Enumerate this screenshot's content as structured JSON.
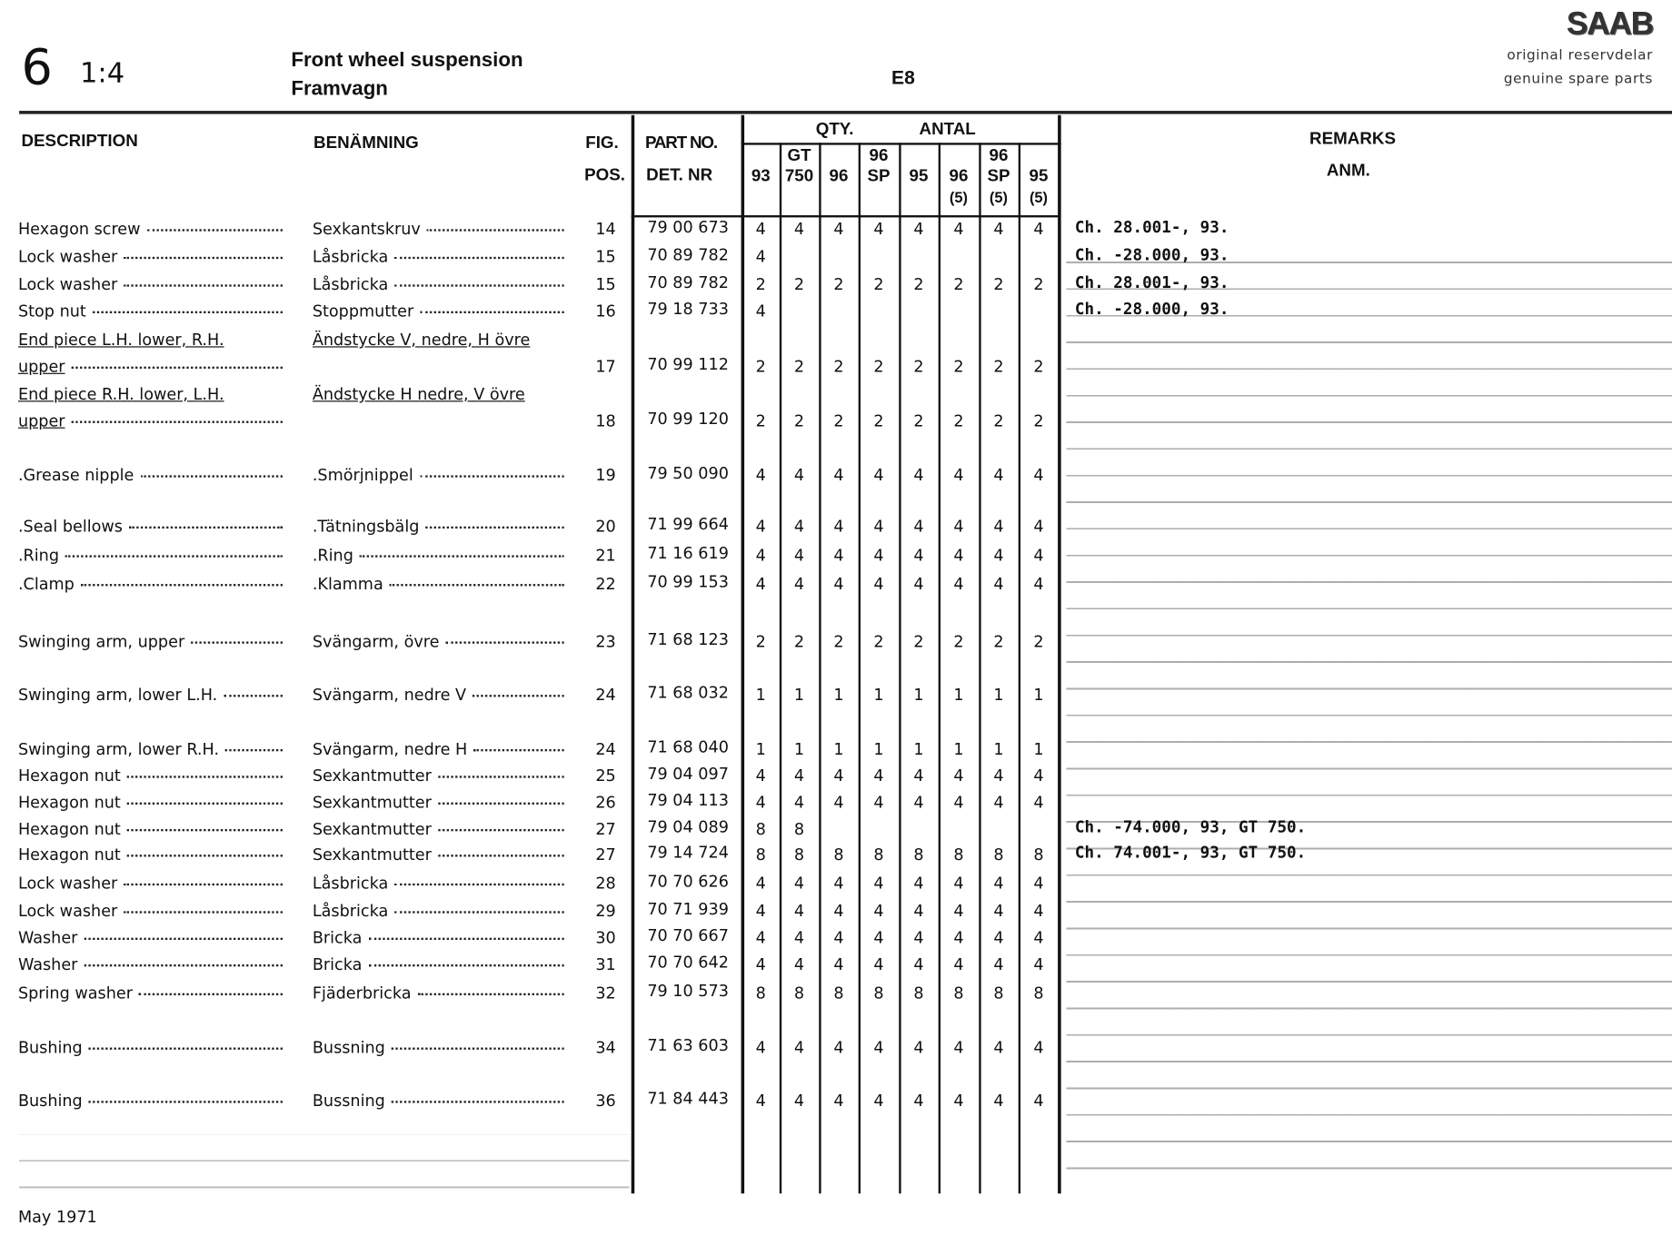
{
  "header": {
    "section": "6",
    "scale": "1:4",
    "title_en": "Front wheel  suspension",
    "title_sv": "Framvagn",
    "code": "E8",
    "brand": "SAAB",
    "tagline_sv": "original reservdelar",
    "tagline_en": "genuine spare parts"
  },
  "columns": {
    "description": "DESCRIPTION",
    "benamning": "BENÄMNING",
    "fig": "FIG.",
    "pos": "POS.",
    "part_no": "PART NO.",
    "det_nr": "DET. NR",
    "qty": "QTY.",
    "antal": "ANTAL",
    "models": [
      {
        "l1": "",
        "l2": "93",
        "l3": ""
      },
      {
        "l1": "GT",
        "l2": "750",
        "l3": ""
      },
      {
        "l1": "",
        "l2": "96",
        "l3": ""
      },
      {
        "l1": "96",
        "l2": "SP",
        "l3": ""
      },
      {
        "l1": "",
        "l2": "95",
        "l3": ""
      },
      {
        "l1": "",
        "l2": "96",
        "l3": "(5)"
      },
      {
        "l1": "96",
        "l2": "SP",
        "l3": "(5)"
      },
      {
        "l1": "",
        "l2": "95",
        "l3": "(5)"
      }
    ],
    "remarks": "REMARKS",
    "anm": "ANM."
  },
  "rows": [
    {
      "desc": "Hexagon screw",
      "benam": "Sexkantskruv",
      "pos": "14",
      "part": "79 00 673",
      "qty": [
        "4",
        "4",
        "4",
        "4",
        "4",
        "4",
        "4",
        "4"
      ],
      "remark": "Ch. 28.001-, 93."
    },
    {
      "desc": "Lock washer",
      "benam": "Låsbricka",
      "pos": "15",
      "part": "70 89 782",
      "qty": [
        "4",
        "",
        "",
        "",
        "",
        "",
        "",
        ""
      ],
      "remark": "Ch. -28.000, 93."
    },
    {
      "desc": "Lock washer",
      "benam": "Låsbricka",
      "pos": "15",
      "part": "70 89 782",
      "qty": [
        "2",
        "2",
        "2",
        "2",
        "2",
        "2",
        "2",
        "2"
      ],
      "remark": "Ch. 28.001-, 93."
    },
    {
      "desc": "Stop nut",
      "benam": "Stoppmutter",
      "pos": "16",
      "part": "79 18 733",
      "qty": [
        "4",
        "",
        "",
        "",
        "",
        "",
        "",
        ""
      ],
      "remark": "Ch. -28.000, 93."
    },
    {
      "desc": "End piece L.H. lower, R.H.",
      "benam": "Ändstycke V, nedre, H övre",
      "pos": "",
      "part": "",
      "qty": [
        "",
        "",
        "",
        "",
        "",
        "",
        "",
        ""
      ],
      "remark": "",
      "underline": true
    },
    {
      "desc": "upper",
      "benam": "",
      "pos": "17",
      "part": "70 99 112",
      "qty": [
        "2",
        "2",
        "2",
        "2",
        "2",
        "2",
        "2",
        "2"
      ],
      "remark": "",
      "underline": true
    },
    {
      "desc": "End piece R.H. lower, L.H.",
      "benam": "Ändstycke H nedre, V övre",
      "pos": "",
      "part": "",
      "qty": [
        "",
        "",
        "",
        "",
        "",
        "",
        "",
        ""
      ],
      "remark": "",
      "underline": true
    },
    {
      "desc": "upper",
      "benam": "",
      "pos": "18",
      "part": "70 99 120",
      "qty": [
        "2",
        "2",
        "2",
        "2",
        "2",
        "2",
        "2",
        "2"
      ],
      "remark": "",
      "underline": true
    },
    {
      "desc": ".Grease nipple",
      "benam": ".Smörjnippel",
      "pos": "19",
      "part": "79 50 090",
      "qty": [
        "4",
        "4",
        "4",
        "4",
        "4",
        "4",
        "4",
        "4"
      ],
      "remark": ""
    },
    {
      "desc": ".Seal bellows",
      "benam": ".Tätningsbälg",
      "pos": "20",
      "part": "71 99 664",
      "qty": [
        "4",
        "4",
        "4",
        "4",
        "4",
        "4",
        "4",
        "4"
      ],
      "remark": ""
    },
    {
      "desc": ".Ring",
      "benam": ".Ring",
      "pos": "21",
      "part": "71 16 619",
      "qty": [
        "4",
        "4",
        "4",
        "4",
        "4",
        "4",
        "4",
        "4"
      ],
      "remark": ""
    },
    {
      "desc": ".Clamp",
      "benam": ".Klamma",
      "pos": "22",
      "part": "70 99 153",
      "qty": [
        "4",
        "4",
        "4",
        "4",
        "4",
        "4",
        "4",
        "4"
      ],
      "remark": ""
    },
    {
      "desc": "Swinging arm, upper",
      "benam": "Svängarm, övre",
      "pos": "23",
      "part": "71 68 123",
      "qty": [
        "2",
        "2",
        "2",
        "2",
        "2",
        "2",
        "2",
        "2"
      ],
      "remark": ""
    },
    {
      "desc": "Swinging arm, lower L.H.",
      "benam": "Svängarm, nedre V",
      "pos": "24",
      "part": "71 68 032",
      "qty": [
        "1",
        "1",
        "1",
        "1",
        "1",
        "1",
        "1",
        "1"
      ],
      "remark": ""
    },
    {
      "desc": "Swinging arm, lower R.H.",
      "benam": "Svängarm, nedre H",
      "pos": "24",
      "part": "71 68 040",
      "qty": [
        "1",
        "1",
        "1",
        "1",
        "1",
        "1",
        "1",
        "1"
      ],
      "remark": ""
    },
    {
      "desc": "Hexagon nut",
      "benam": "Sexkantmutter",
      "pos": "25",
      "part": "79 04 097",
      "qty": [
        "4",
        "4",
        "4",
        "4",
        "4",
        "4",
        "4",
        "4"
      ],
      "remark": ""
    },
    {
      "desc": "Hexagon nut",
      "benam": "Sexkantmutter",
      "pos": "26",
      "part": "79 04 113",
      "qty": [
        "4",
        "4",
        "4",
        "4",
        "4",
        "4",
        "4",
        "4"
      ],
      "remark": ""
    },
    {
      "desc": "Hexagon nut",
      "benam": "Sexkantmutter",
      "pos": "27",
      "part": "79 04 089",
      "qty": [
        "8",
        "8",
        "",
        "",
        "",
        "",
        "",
        ""
      ],
      "remark": "Ch. -74.000, 93, GT 750."
    },
    {
      "desc": "Hexagon nut",
      "benam": "Sexkantmutter",
      "pos": "27",
      "part": "79 14 724",
      "qty": [
        "8",
        "8",
        "8",
        "8",
        "8",
        "8",
        "8",
        "8"
      ],
      "remark": "Ch. 74.001-, 93, GT 750."
    },
    {
      "desc": "Lock washer",
      "benam": "Låsbricka",
      "pos": "28",
      "part": "70 70 626",
      "qty": [
        "4",
        "4",
        "4",
        "4",
        "4",
        "4",
        "4",
        "4"
      ],
      "remark": ""
    },
    {
      "desc": "Lock washer",
      "benam": "Låsbricka",
      "pos": "29",
      "part": "70 71 939",
      "qty": [
        "4",
        "4",
        "4",
        "4",
        "4",
        "4",
        "4",
        "4"
      ],
      "remark": ""
    },
    {
      "desc": "Washer",
      "benam": "Bricka",
      "pos": "30",
      "part": "70 70 667",
      "qty": [
        "4",
        "4",
        "4",
        "4",
        "4",
        "4",
        "4",
        "4"
      ],
      "remark": ""
    },
    {
      "desc": "Washer",
      "benam": "Bricka",
      "pos": "31",
      "part": "70 70 642",
      "qty": [
        "4",
        "4",
        "4",
        "4",
        "4",
        "4",
        "4",
        "4"
      ],
      "remark": ""
    },
    {
      "desc": "Spring washer",
      "benam": "Fjäderbricka",
      "pos": "32",
      "part": "79 10 573",
      "qty": [
        "8",
        "8",
        "8",
        "8",
        "8",
        "8",
        "8",
        "8"
      ],
      "remark": ""
    },
    {
      "desc": "Bushing",
      "benam": "Bussning",
      "pos": "34",
      "part": "71 63 603",
      "qty": [
        "4",
        "4",
        "4",
        "4",
        "4",
        "4",
        "4",
        "4"
      ],
      "remark": ""
    },
    {
      "desc": "Bushing",
      "benam": "Bussning",
      "pos": "36",
      "part": "71 84 443",
      "qty": [
        "4",
        "4",
        "4",
        "4",
        "4",
        "4",
        "4",
        "4"
      ],
      "remark": ""
    }
  ],
  "footer": {
    "date": "May 1971"
  }
}
